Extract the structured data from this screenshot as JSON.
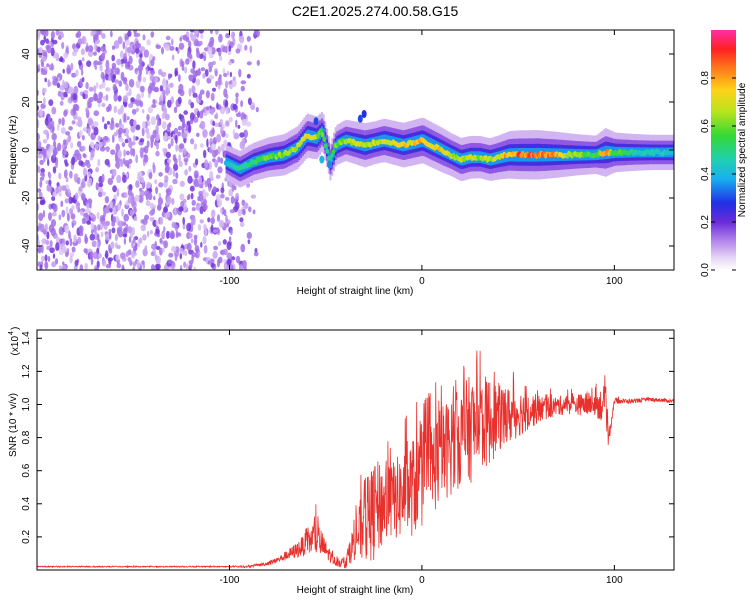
{
  "title": "C2E1.2025.274.00.58.G15",
  "chart_data": [
    {
      "type": "heatmap",
      "name": "spectrogram",
      "xlabel": "Height of straight line (km)",
      "ylabel": "Frequency (Hz)",
      "xlim": [
        -200,
        131
      ],
      "ylim": [
        -50,
        50
      ],
      "xticks": [
        -100,
        0,
        100
      ],
      "xticklabels": [
        "-100",
        "0",
        "100"
      ],
      "yticks": [
        -40,
        -20,
        0,
        20,
        40
      ],
      "yticklabels": [
        "-40",
        "-20",
        "0",
        "20",
        "40"
      ],
      "colorbar": {
        "label": "Normalized spectral amplitude",
        "range": [
          0.0,
          1.0
        ],
        "ticks": [
          0.0,
          0.2,
          0.4,
          0.6,
          0.8
        ],
        "ticklabels": [
          "0.0",
          "0.2",
          "0.4",
          "0.6",
          "0.8"
        ]
      },
      "noise_region_x": [
        -200,
        -85
      ],
      "signal_ridge": {
        "height_km": [
          -102,
          -95,
          -88,
          -80,
          -72,
          -65,
          -60,
          -55,
          -52,
          -48,
          -45,
          -40,
          -35,
          -30,
          -25,
          -20,
          -15,
          -10,
          -5,
          0,
          5,
          10,
          15,
          20,
          25,
          30,
          35,
          40,
          45,
          50,
          60,
          70,
          80,
          90,
          95,
          100,
          110,
          120,
          131
        ],
        "frequency_hz": [
          -5,
          -8,
          -5,
          -3,
          -2,
          1,
          6,
          5,
          8,
          -5,
          2,
          4,
          3,
          2,
          3,
          4,
          3,
          2,
          3,
          4,
          2,
          0,
          -2,
          -4,
          -3,
          -3,
          -4,
          -3,
          -2,
          -2,
          -2,
          -2,
          -2,
          -2,
          -1,
          -1,
          -1,
          -1,
          -1
        ],
        "normalized_amplitude": [
          0.4,
          0.5,
          0.55,
          0.6,
          0.65,
          0.7,
          0.75,
          0.7,
          0.6,
          0.5,
          0.6,
          0.65,
          0.7,
          0.75,
          0.7,
          0.72,
          0.74,
          0.76,
          0.78,
          0.8,
          0.78,
          0.76,
          0.7,
          0.72,
          0.7,
          0.68,
          0.7,
          0.75,
          0.85,
          0.9,
          0.92,
          0.8,
          0.65,
          0.55,
          0.9,
          0.6,
          0.5,
          0.45,
          0.45
        ]
      }
    },
    {
      "type": "line",
      "name": "snr",
      "xlabel": "Height of straight line (km)",
      "ylabel": "SNR (10 * v/v)",
      "yscale_label": "(x10",
      "yscale_exp": "4",
      "xlim": [
        -200,
        131
      ],
      "ylim": [
        0,
        1.45
      ],
      "xticks": [
        -100,
        0,
        100
      ],
      "xticklabels": [
        "-100",
        "0",
        "100"
      ],
      "yticks": [
        0.2,
        0.4,
        0.6,
        0.8,
        1.0,
        1.2,
        1.4
      ],
      "yticklabels": [
        "0.2",
        "0.4",
        "0.6",
        "0.8",
        "1.0",
        "1.2",
        "1.4"
      ],
      "series": [
        {
          "name": "SNR",
          "color": "#e8302c",
          "x": [
            -200,
            -180,
            -160,
            -140,
            -120,
            -100,
            -90,
            -80,
            -75,
            -70,
            -65,
            -60,
            -55,
            -50,
            -45,
            -40,
            -35,
            -30,
            -25,
            -20,
            -15,
            -10,
            -5,
            0,
            5,
            10,
            15,
            20,
            25,
            30,
            35,
            40,
            45,
            50,
            55,
            60,
            65,
            70,
            75,
            80,
            85,
            90,
            95,
            97,
            100,
            110,
            120,
            131
          ],
          "y": [
            0.02,
            0.02,
            0.02,
            0.02,
            0.02,
            0.02,
            0.02,
            0.04,
            0.06,
            0.09,
            0.12,
            0.16,
            0.2,
            0.12,
            0.05,
            0.04,
            0.18,
            0.28,
            0.35,
            0.4,
            0.42,
            0.45,
            0.5,
            0.55,
            0.62,
            0.7,
            0.75,
            0.8,
            0.85,
            0.88,
            0.9,
            0.92,
            0.93,
            0.95,
            0.96,
            0.97,
            0.98,
            0.99,
            1.0,
            1.0,
            1.0,
            1.0,
            1.0,
            0.8,
            1.02,
            1.02,
            1.03,
            1.02
          ],
          "spread": [
            0.005,
            0.005,
            0.005,
            0.005,
            0.005,
            0.005,
            0.01,
            0.02,
            0.03,
            0.05,
            0.08,
            0.12,
            0.2,
            0.1,
            0.04,
            0.06,
            0.2,
            0.4,
            0.5,
            0.45,
            0.4,
            0.45,
            0.5,
            0.5,
            0.5,
            0.5,
            0.5,
            0.5,
            0.55,
            0.5,
            0.45,
            0.35,
            0.3,
            0.25,
            0.2,
            0.15,
            0.12,
            0.1,
            0.1,
            0.1,
            0.12,
            0.12,
            0.2,
            0.1,
            0.03,
            0.02,
            0.02,
            0.02
          ]
        }
      ]
    }
  ]
}
